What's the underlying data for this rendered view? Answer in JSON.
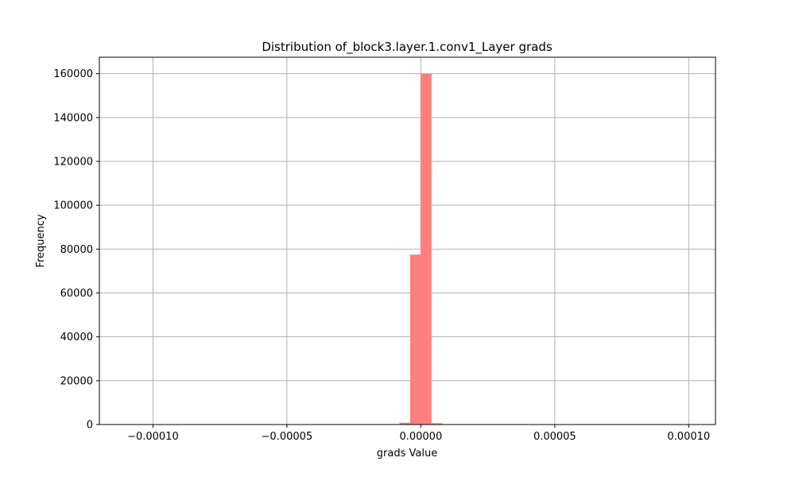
{
  "chart_data": {
    "type": "bar",
    "title": "Distribution of_block3.layer.1.conv1_Layer grads",
    "xlabel": "grads Value",
    "ylabel": "Frequency",
    "xlim": [
      -0.00012,
      0.00011
    ],
    "ylim": [
      0,
      167500
    ],
    "xticks": [
      -0.0001,
      -5e-05,
      0.0,
      5e-05,
      0.0001
    ],
    "xtick_labels": [
      "−0.00010",
      "−0.00005",
      "0.00000",
      "0.00005",
      "0.00010"
    ],
    "yticks": [
      0,
      20000,
      40000,
      60000,
      80000,
      100000,
      120000,
      140000,
      160000
    ],
    "ytick_labels": [
      "0",
      "20000",
      "40000",
      "60000",
      "80000",
      "100000",
      "120000",
      "140000",
      "160000"
    ],
    "grid": true,
    "bar_color": "#ff7f7f",
    "bin_edges": [
      -0.0001,
      -9.6e-05,
      -9.2e-05,
      -8.8e-05,
      -8.4e-05,
      -8e-05,
      -7.6e-05,
      -7.2e-05,
      -6.8e-05,
      -6.4e-05,
      -6e-05,
      -5.6e-05,
      -5.2e-05,
      -4.8e-05,
      -4.4e-05,
      -4e-05,
      -3.6e-05,
      -3.2e-05,
      -2.8e-05,
      -2.4e-05,
      -2e-05,
      -1.6e-05,
      -1.2e-05,
      -8e-06,
      -4e-06,
      0.0,
      4e-06,
      8e-06,
      1.2e-05,
      1.6e-05,
      2e-05,
      2.4e-05,
      2.8e-05,
      3.2e-05,
      3.6e-05,
      4e-05,
      4.4e-05,
      4.8e-05,
      5.2e-05,
      5.6e-05,
      6e-05,
      6.4e-05,
      6.8e-05,
      7.2e-05,
      7.6e-05,
      8e-05,
      8.4e-05,
      8.8e-05,
      9.2e-05,
      9.6e-05,
      0.0001
    ],
    "values": [
      0,
      0,
      0,
      0,
      0,
      0,
      0,
      0,
      0,
      0,
      0,
      0,
      0,
      0,
      0,
      0,
      0,
      0,
      0,
      0,
      0,
      0,
      0,
      800,
      77500,
      160000,
      600,
      0,
      0,
      0,
      0,
      0,
      0,
      0,
      0,
      0,
      0,
      0,
      0,
      0,
      0,
      0,
      0,
      0,
      0,
      0,
      0,
      0,
      0,
      0
    ]
  }
}
